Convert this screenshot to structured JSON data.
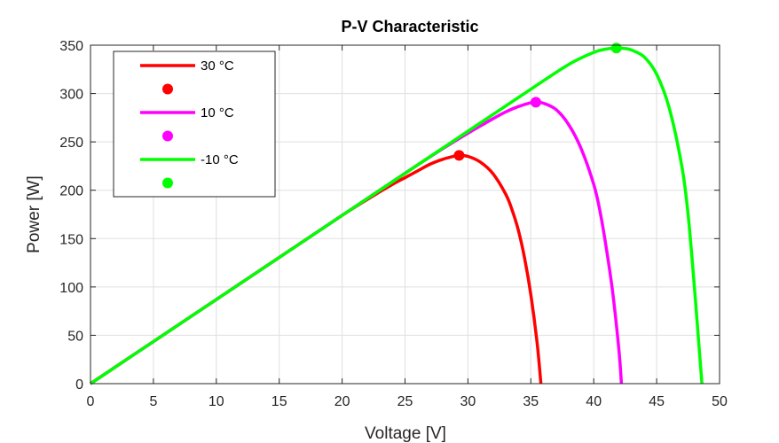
{
  "chart_data": {
    "type": "line",
    "title": "P-V Characteristic",
    "xlabel": "Voltage [V]",
    "ylabel": "Power [W]",
    "xlim": [
      0,
      50
    ],
    "ylim": [
      0,
      350
    ],
    "xticks": [
      "0",
      "5",
      "10",
      "15",
      "20",
      "25",
      "30",
      "35",
      "40",
      "45",
      "50"
    ],
    "yticks": [
      "0",
      "50",
      "100",
      "150",
      "200",
      "250",
      "300",
      "350"
    ],
    "grid": true,
    "legend_position": "top-left",
    "series": [
      {
        "name": "30 °C",
        "color": "#ff0000",
        "x": [
          0,
          5,
          10,
          15,
          20,
          22,
          24,
          25,
          26,
          27,
          28,
          29,
          29.3,
          30,
          31,
          32,
          33,
          33.5,
          34,
          34.5,
          35,
          35.5,
          35.8
        ],
        "y": [
          0,
          43.5,
          87,
          130.5,
          174,
          190.5,
          206,
          213,
          220,
          227,
          232,
          235.5,
          236,
          235,
          229,
          217,
          196,
          180,
          159,
          130,
          92,
          42,
          0
        ],
        "mpp": {
          "x": 29.3,
          "y": 236
        }
      },
      {
        "name": "10 °C",
        "color": "#ff00ff",
        "x": [
          0,
          5,
          10,
          15,
          20,
          25,
          28,
          30,
          32,
          33,
          34,
          35,
          35.4,
          36,
          37,
          38,
          39,
          40,
          40.5,
          41,
          41.5,
          42,
          42.2
        ],
        "y": [
          0,
          43.5,
          87,
          130.5,
          174,
          217.5,
          243,
          259,
          274,
          281,
          286.5,
          290.5,
          291,
          290,
          283.5,
          268,
          243,
          206,
          178,
          140,
          95,
          35,
          0
        ],
        "mpp": {
          "x": 35.4,
          "y": 291
        }
      },
      {
        "name": "-10 °C",
        "color": "#00ff00",
        "x": [
          0,
          5,
          10,
          15,
          20,
          25,
          30,
          35,
          38,
          40,
          41,
          41.8,
          42.5,
          43,
          44,
          45,
          46,
          47,
          47.5,
          48,
          48.3,
          48.6
        ],
        "y": [
          0,
          43.5,
          87,
          130.5,
          174,
          217.5,
          261,
          304.5,
          330,
          342.5,
          346,
          347,
          346.5,
          345,
          338,
          320,
          285,
          225,
          175,
          100,
          50,
          0
        ],
        "mpp": {
          "x": 41.8,
          "y": 347
        }
      }
    ]
  }
}
